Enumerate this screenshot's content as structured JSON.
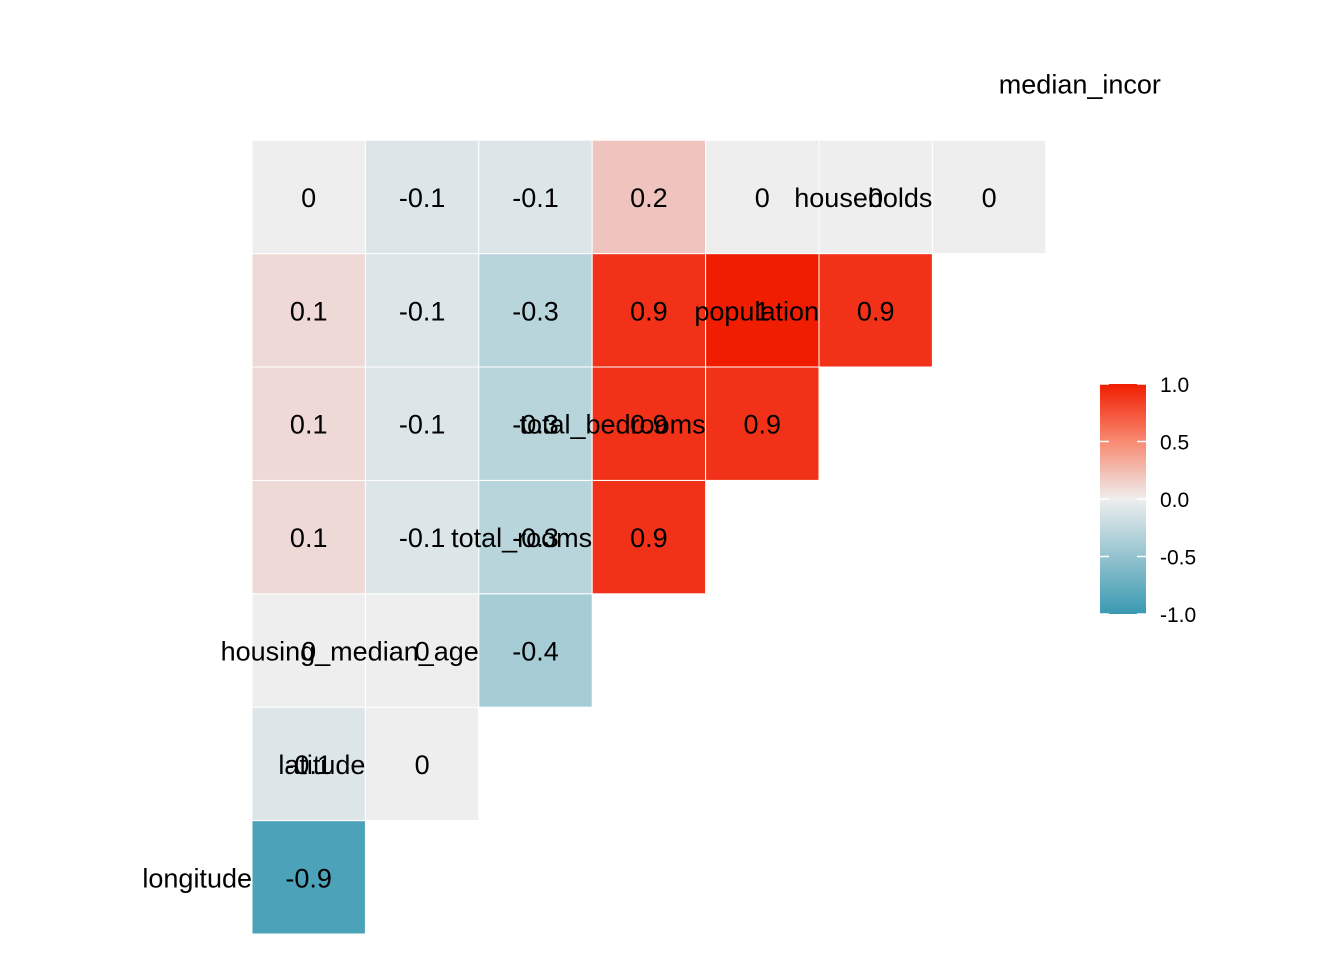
{
  "chart_data": {
    "type": "heatmap",
    "title": "",
    "variables": [
      "longitude",
      "latitude",
      "housing_median_age",
      "total_rooms",
      "total_bedrooms",
      "population",
      "households",
      "median_income"
    ],
    "median_income_label_visible": "median_incor",
    "cells": [
      {
        "row": "latitude",
        "col": "longitude",
        "value": -0.9,
        "label": "-0.9"
      },
      {
        "row": "housing_median_age",
        "col": "longitude",
        "value": -0.1,
        "label": "-0.1"
      },
      {
        "row": "housing_median_age",
        "col": "latitude",
        "value": 0,
        "label": "0"
      },
      {
        "row": "total_rooms",
        "col": "longitude",
        "value": 0,
        "label": "0"
      },
      {
        "row": "total_rooms",
        "col": "latitude",
        "value": 0,
        "label": "0"
      },
      {
        "row": "total_rooms",
        "col": "housing_median_age",
        "value": -0.4,
        "label": "-0.4"
      },
      {
        "row": "total_bedrooms",
        "col": "longitude",
        "value": 0.1,
        "label": "0.1"
      },
      {
        "row": "total_bedrooms",
        "col": "latitude",
        "value": -0.1,
        "label": "-0.1"
      },
      {
        "row": "total_bedrooms",
        "col": "housing_median_age",
        "value": -0.3,
        "label": "-0.3"
      },
      {
        "row": "total_bedrooms",
        "col": "total_rooms",
        "value": 0.9,
        "label": "0.9"
      },
      {
        "row": "population",
        "col": "longitude",
        "value": 0.1,
        "label": "0.1"
      },
      {
        "row": "population",
        "col": "latitude",
        "value": -0.1,
        "label": "-0.1"
      },
      {
        "row": "population",
        "col": "housing_median_age",
        "value": -0.3,
        "label": "-0.3"
      },
      {
        "row": "population",
        "col": "total_rooms",
        "value": 0.9,
        "label": "0.9"
      },
      {
        "row": "population",
        "col": "total_bedrooms",
        "value": 0.9,
        "label": "0.9"
      },
      {
        "row": "households",
        "col": "longitude",
        "value": 0.1,
        "label": "0.1"
      },
      {
        "row": "households",
        "col": "latitude",
        "value": -0.1,
        "label": "-0.1"
      },
      {
        "row": "households",
        "col": "housing_median_age",
        "value": -0.3,
        "label": "-0.3"
      },
      {
        "row": "households",
        "col": "total_rooms",
        "value": 0.9,
        "label": "0.9"
      },
      {
        "row": "households",
        "col": "total_bedrooms",
        "value": 1,
        "label": "1"
      },
      {
        "row": "households",
        "col": "population",
        "value": 0.9,
        "label": "0.9"
      },
      {
        "row": "median_income",
        "col": "longitude",
        "value": 0,
        "label": "0"
      },
      {
        "row": "median_income",
        "col": "latitude",
        "value": -0.1,
        "label": "-0.1"
      },
      {
        "row": "median_income",
        "col": "housing_median_age",
        "value": -0.1,
        "label": "-0.1"
      },
      {
        "row": "median_income",
        "col": "total_rooms",
        "value": 0.2,
        "label": "0.2"
      },
      {
        "row": "median_income",
        "col": "total_bedrooms",
        "value": 0,
        "label": "0"
      },
      {
        "row": "median_income",
        "col": "population",
        "value": 0,
        "label": "0"
      },
      {
        "row": "median_income",
        "col": "households",
        "value": 0,
        "label": "0"
      }
    ],
    "color_scale": {
      "low": "#3a9ab2",
      "mid": "#eeeeee",
      "high": "#f11d00",
      "limits": [
        -1,
        1
      ]
    },
    "legend": {
      "position": "right",
      "ticks": [
        "1.0",
        "0.5",
        "0.0",
        "-0.5",
        "-1.0"
      ],
      "tick_values": [
        1,
        0.5,
        0,
        -0.5,
        -1
      ]
    }
  }
}
